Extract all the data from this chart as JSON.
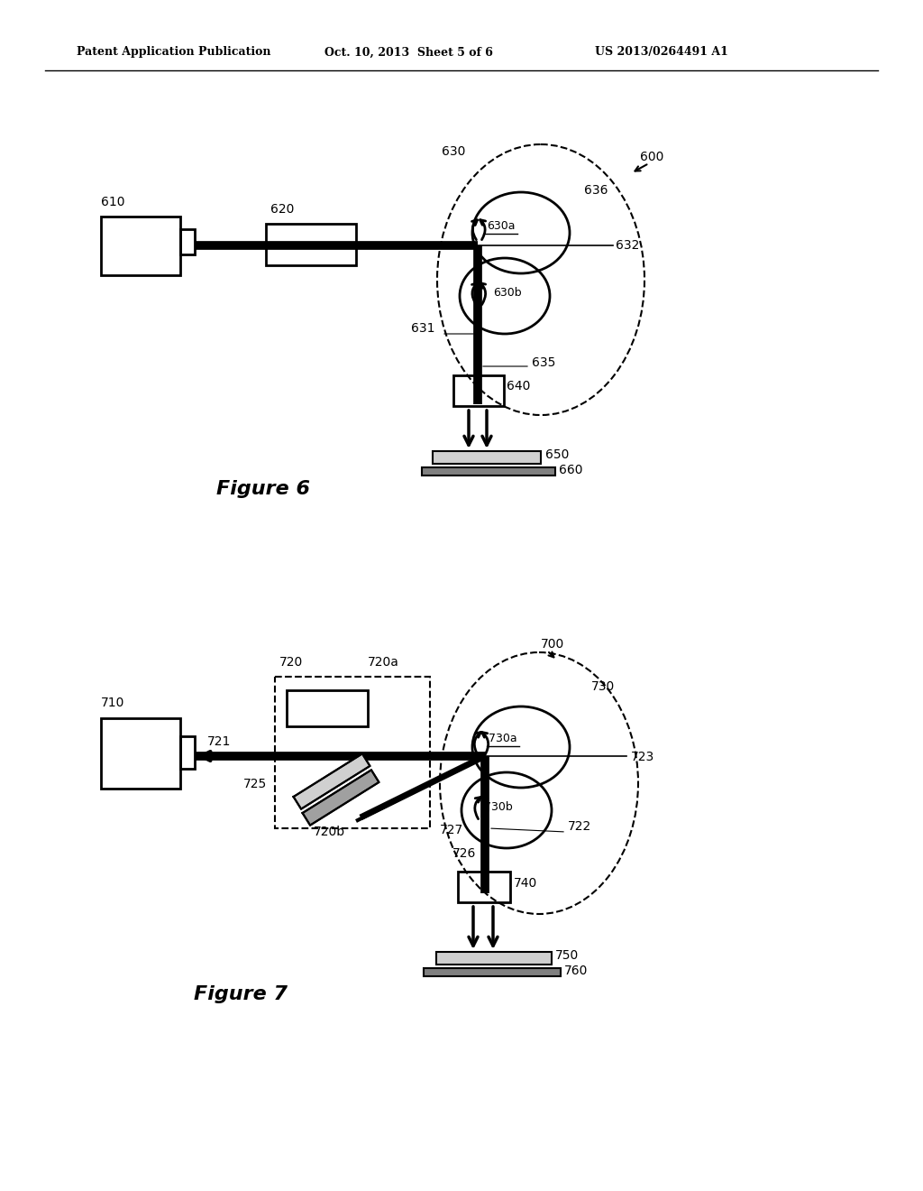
{
  "header_left": "Patent Application Publication",
  "header_mid": "Oct. 10, 2013  Sheet 5 of 6",
  "header_right": "US 2013/0264491 A1",
  "fig6_title": "Figure 6",
  "fig7_title": "Figure 7",
  "bg_color": "#ffffff",
  "line_color": "#000000"
}
